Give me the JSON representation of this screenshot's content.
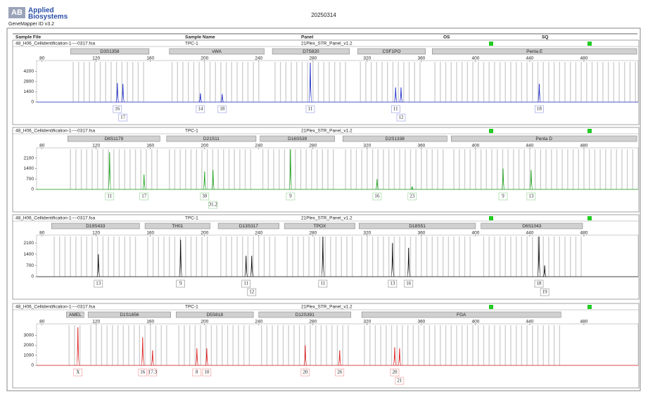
{
  "header": {
    "logo_mark": "AB",
    "logo_line1": "Applied",
    "logo_line2": "Biosystems",
    "software": "GeneMapper ID v3.2",
    "date": "20250314",
    "columns": [
      "Sample File",
      "Sample Name",
      "Panel",
      "OS",
      "SQ"
    ]
  },
  "chart_data": [
    {
      "type": "electropherogram",
      "sample_file": "48_H06_Cellidentification-1----0317.fsa",
      "sample_name": "TPC-1",
      "panel": "21Plex_STR_Panel_v1.2",
      "color": "#2431c8",
      "loci": [
        {
          "name": "D3S1358",
          "start": 101,
          "end": 159
        },
        {
          "name": "vWA",
          "start": 174,
          "end": 244
        },
        {
          "name": "D7S820",
          "start": 250,
          "end": 307
        },
        {
          "name": "CSF1PO",
          "start": 313,
          "end": 363
        },
        {
          "name": "Penta E",
          "start": 368,
          "end": 519
        }
      ],
      "x": [
        135.6,
        139.7,
        196.9,
        213,
        278,
        341,
        345,
        447
      ],
      "values": [
        2600,
        2500,
        1200,
        1100,
        5400,
        2000,
        2000,
        2500
      ],
      "alleles": [
        "16",
        "17",
        "14",
        "18",
        "11",
        "11",
        "12",
        "18"
      ],
      "xlim": [
        76,
        520
      ],
      "xticks": [
        80,
        120,
        160,
        200,
        240,
        280,
        320,
        360,
        400,
        440,
        480
      ],
      "ylim": [
        0,
        5500
      ],
      "yticks": [
        0,
        1400,
        2800,
        4200
      ]
    },
    {
      "type": "electropherogram",
      "sample_file": "48_H06_Cellidentification-1----0317.fsa",
      "sample_name": "TPC-1",
      "panel": "21Plex_STR_Panel_v1.2",
      "color": "#22a522",
      "loci": [
        {
          "name": "D8S1179",
          "start": 99,
          "end": 167
        },
        {
          "name": "D21S11",
          "start": 172,
          "end": 238
        },
        {
          "name": "D16S539",
          "start": 241,
          "end": 296
        },
        {
          "name": "D2S1338",
          "start": 302,
          "end": 379
        },
        {
          "name": "Penta D",
          "start": 382,
          "end": 519
        }
      ],
      "x": [
        129.9,
        155.3,
        200,
        206.2,
        263.4,
        327.3,
        353.2,
        420.3,
        441
      ],
      "values": [
        2500,
        1000,
        1200,
        1300,
        2700,
        700,
        200,
        1400,
        1300
      ],
      "alleles": [
        "11",
        "17",
        "30",
        "31.2",
        "9",
        "16",
        "23",
        "9",
        "13"
      ],
      "xlim": [
        76,
        520
      ],
      "xticks": [
        80,
        120,
        160,
        200,
        240,
        280,
        320,
        360,
        400,
        440,
        480
      ],
      "ylim": [
        0,
        2700
      ],
      "yticks": [
        0,
        700,
        1400,
        2100
      ]
    },
    {
      "type": "electropherogram",
      "sample_file": "48_H06_Cellidentification-1----0317.fsa",
      "sample_name": "TPC-1",
      "panel": "21Plex_STR_Panel_v1.2",
      "color": "#111111",
      "loci": [
        {
          "name": "D19S433",
          "start": 87,
          "end": 152
        },
        {
          "name": "TH01",
          "start": 156,
          "end": 204
        },
        {
          "name": "D13S317",
          "start": 210,
          "end": 255
        },
        {
          "name": "TPOX",
          "start": 259,
          "end": 311
        },
        {
          "name": "D18S51",
          "start": 314,
          "end": 400
        },
        {
          "name": "D6S1043",
          "start": 404,
          "end": 479
        }
      ],
      "x": [
        121.6,
        182.3,
        230.6,
        234.8,
        287.3,
        338.7,
        350.6,
        446.8,
        451
      ],
      "values": [
        1400,
        2300,
        1300,
        1300,
        2500,
        2100,
        1800,
        2500,
        700
      ],
      "alleles": [
        "13",
        "9",
        "11",
        "12",
        "11",
        "13",
        "16",
        "18",
        "19"
      ],
      "xlim": [
        76,
        520
      ],
      "xticks": [
        80,
        120,
        160,
        200,
        240,
        280,
        320,
        360,
        400,
        440,
        480
      ],
      "ylim": [
        0,
        2500
      ],
      "yticks": [
        0,
        700,
        1400,
        2100
      ]
    },
    {
      "type": "electropherogram",
      "sample_file": "48_H06_Cellidentification-1----0317.fsa",
      "sample_name": "TPC-1",
      "panel": "21Plex_STR_Panel_v1.2",
      "color": "#dd2222",
      "loci": [
        {
          "name": "AMEL",
          "start": 98,
          "end": 111
        },
        {
          "name": "D1S1656",
          "start": 114,
          "end": 175
        },
        {
          "name": "D5S818",
          "start": 179,
          "end": 236
        },
        {
          "name": "D12S391",
          "start": 240,
          "end": 308
        },
        {
          "name": "FGA",
          "start": 316,
          "end": 463
        }
      ],
      "x": [
        106.5,
        154.3,
        161.6,
        194.3,
        201.6,
        274.3,
        299.7,
        340.3,
        343.9
      ],
      "values": [
        3800,
        2800,
        1500,
        1700,
        1700,
        2000,
        1500,
        1800,
        1700
      ],
      "alleles": [
        "X",
        "16",
        "17.3",
        "8",
        "10",
        "20",
        "26",
        "20",
        "21"
      ],
      "xlim": [
        76,
        520
      ],
      "xticks": [
        80,
        120,
        160,
        200,
        240,
        280,
        320,
        360,
        400,
        440,
        480
      ],
      "ylim": [
        0,
        4000
      ],
      "yticks": [
        0,
        1000,
        2000,
        3000
      ]
    }
  ]
}
